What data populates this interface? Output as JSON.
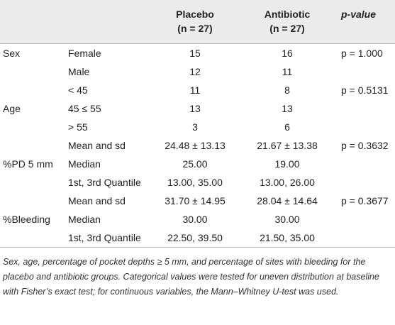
{
  "table": {
    "header": {
      "placebo": [
        "Placebo",
        "(n = 27)"
      ],
      "antibiotic": [
        "Antibiotic",
        "(n = 27)"
      ],
      "pvalue": "p-value"
    },
    "rows": [
      {
        "group": "Sex",
        "label": "Female",
        "placebo": "15",
        "antibiotic": "16",
        "p": "p = 1.000"
      },
      {
        "label": "Male",
        "placebo": "12",
        "antibiotic": "11"
      },
      {
        "label": "< 45",
        "placebo": "11",
        "antibiotic": "8",
        "p": "p = 0.5131"
      },
      {
        "group": "Age",
        "label": "45 ≤ 55",
        "placebo": "13",
        "antibiotic": "13"
      },
      {
        "label": "> 55",
        "placebo": "3",
        "antibiotic": "6"
      },
      {
        "label": "Mean and sd",
        "placebo": "24.48 ± 13.13",
        "antibiotic": "21.67 ± 13.38",
        "p": "p = 0.3632"
      },
      {
        "group": "%PD 5 mm",
        "label": "Median",
        "placebo": "25.00",
        "antibiotic": "19.00"
      },
      {
        "label": "1st, 3rd Quantile",
        "placebo": "13.00, 35.00",
        "antibiotic": "13.00, 26.00"
      },
      {
        "label": "Mean and sd",
        "placebo": "31.70 ± 14.95",
        "antibiotic": "28.04 ± 14.64",
        "p": "p = 0.3677"
      },
      {
        "group": "%Bleeding",
        "label": "Median",
        "placebo": "30.00",
        "antibiotic": "30.00"
      },
      {
        "label": "1st, 3rd Quantile",
        "placebo": "22.50, 39.50",
        "antibiotic": "21.50, 35.00"
      }
    ],
    "caption": "Sex, age, percentage of pocket depths ≥ 5 mm, and percentage of sites with bleeding for the placebo and antibiotic groups. Categorical values were tested for uneven distribution at baseline with Fisher’s exact test; for continuous variables, the Mann–Whitney U-test was used."
  }
}
